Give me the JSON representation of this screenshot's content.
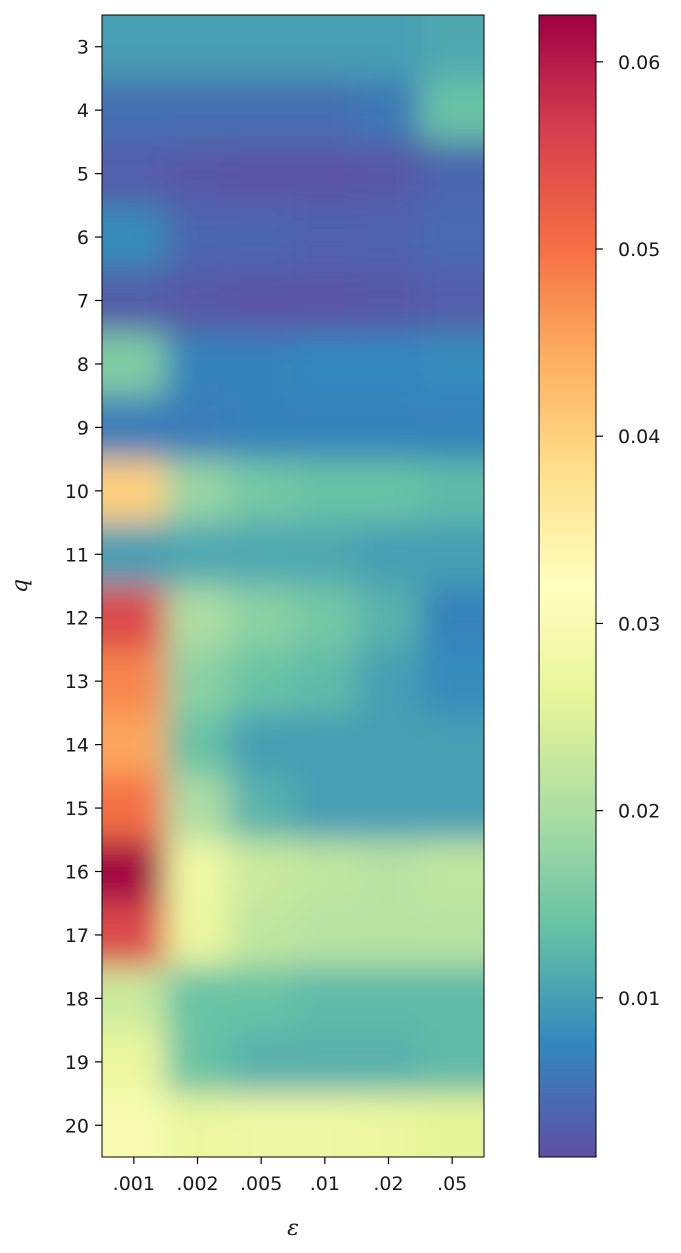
{
  "chart_data": {
    "type": "heatmap",
    "xlabel": "ε",
    "ylabel": "q",
    "x_categories": [
      ".001",
      ".002",
      ".005",
      ".01",
      ".02",
      ".05"
    ],
    "y_categories": [
      3,
      4,
      5,
      6,
      7,
      8,
      9,
      10,
      11,
      12,
      13,
      14,
      15,
      16,
      17,
      18,
      19,
      20
    ],
    "values": [
      [
        0.01,
        0.01,
        0.01,
        0.01,
        0.01,
        0.011
      ],
      [
        0.005,
        0.005,
        0.005,
        0.005,
        0.006,
        0.014
      ],
      [
        0.003,
        0.0025,
        0.002,
        0.002,
        0.0025,
        0.004
      ],
      [
        0.008,
        0.004,
        0.004,
        0.0035,
        0.0035,
        0.0045
      ],
      [
        0.003,
        0.0025,
        0.002,
        0.002,
        0.0025,
        0.003
      ],
      [
        0.016,
        0.007,
        0.007,
        0.0075,
        0.0075,
        0.008
      ],
      [
        0.0065,
        0.0065,
        0.007,
        0.007,
        0.007,
        0.007
      ],
      [
        0.04,
        0.018,
        0.015,
        0.014,
        0.014,
        0.013
      ],
      [
        0.01,
        0.011,
        0.011,
        0.011,
        0.01,
        0.01
      ],
      [
        0.055,
        0.02,
        0.017,
        0.015,
        0.012,
        0.007
      ],
      [
        0.048,
        0.017,
        0.014,
        0.013,
        0.01,
        0.008
      ],
      [
        0.045,
        0.014,
        0.01,
        0.01,
        0.01,
        0.01
      ],
      [
        0.05,
        0.02,
        0.012,
        0.01,
        0.01,
        0.01
      ],
      [
        0.062,
        0.028,
        0.023,
        0.022,
        0.021,
        0.022
      ],
      [
        0.055,
        0.027,
        0.022,
        0.021,
        0.021,
        0.021
      ],
      [
        0.023,
        0.014,
        0.014,
        0.013,
        0.013,
        0.013
      ],
      [
        0.027,
        0.014,
        0.012,
        0.012,
        0.012,
        0.013
      ],
      [
        0.03,
        0.027,
        0.028,
        0.028,
        0.027,
        0.026
      ]
    ],
    "colormap": "Spectral_r",
    "vmin": 0.0015,
    "vmax": 0.0625,
    "colorbar_ticks": [
      0.01,
      0.02,
      0.03,
      0.04,
      0.05,
      0.06
    ],
    "colorbar_tick_labels": [
      "0.01",
      "0.02",
      "0.03",
      "0.04",
      "0.05",
      "0.06"
    ]
  }
}
